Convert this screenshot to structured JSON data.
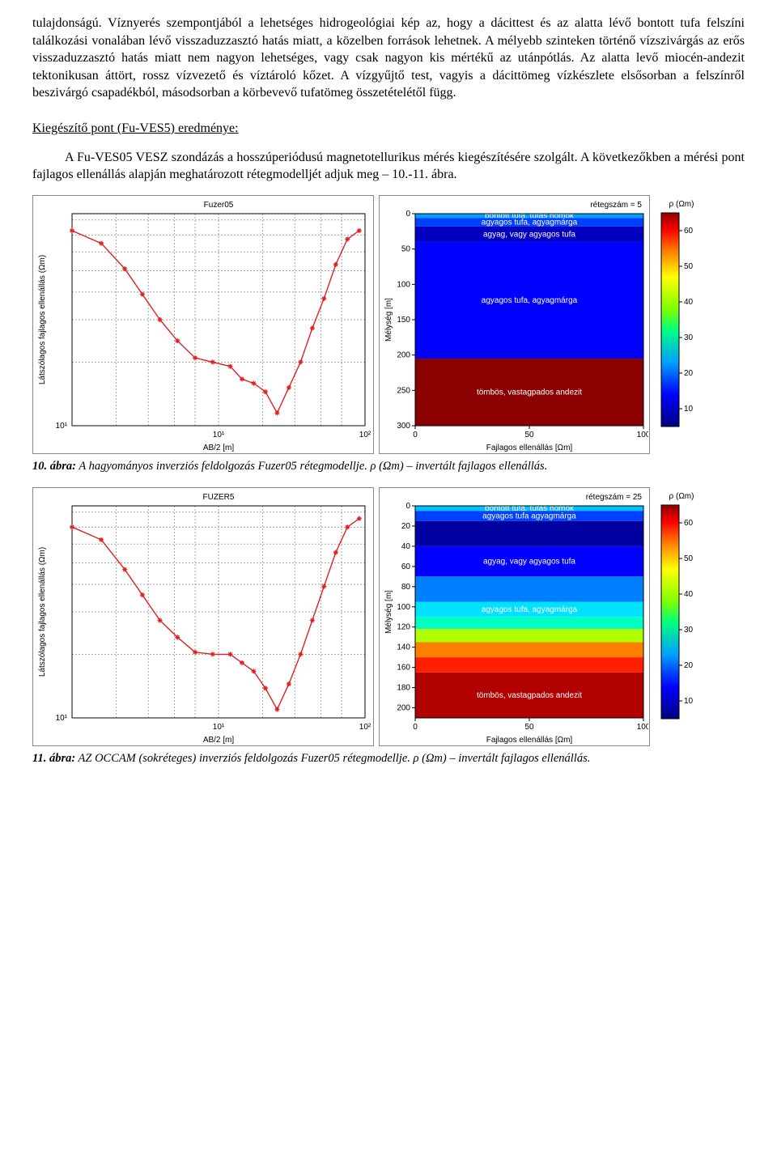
{
  "para1": "tulajdonságú. Víznyerés szempontjából a lehetséges hidrogeológiai kép az, hogy a dácittest és az alatta lévő bontott tufa felszíni találkozási vonalában lévő visszaduzzasztó hatás miatt, a közelben források lehetnek. A mélyebb szinteken történő vízszivárgás az erős visszaduzzasztó hatás miatt nem nagyon lehetséges, vagy csak nagyon kis mértékű az utánpótlás. Az alatta levő miocén-andezit tektonikusan áttört, rossz vízvezető és víztároló kőzet. A vízgyűjtő test, vagyis a dácittömeg vízkészlete elsősorban a felszínről beszivárgó csapadékból, másodsorban a körbevevő tufatömeg összetételétől függ.",
  "sectionTitle": "Kiegészítő pont (Fu-VES5) eredménye:",
  "para2": "A Fu-VES05 VESZ szondázás a hosszúperiódusú magnetotellurikus mérés kiegészítésére szolgált. A következőkben a mérési pont fajlagos ellenállás alapján meghatározott rétegmodelljét adjuk meg – 10.-11. ábra.",
  "fig10": {
    "caption_bold": "10. ábra:",
    "caption_rest": " A hagyományos inverziós feldolgozás Fuzer05 rétegmodellje. ρ (Ωm) – invertált fajlagos ellenállás.",
    "left": {
      "title": "Fuzer05",
      "xlabel": "AB/2 [m]",
      "ylabel": "Látszólagos fajlagos ellenállás (Ωm)",
      "xticks": [
        {
          "p": 0.0,
          "l": ""
        },
        {
          "p": 0.5,
          "l": "10¹"
        },
        {
          "p": 1.0,
          "l": "10²"
        }
      ],
      "yticks": [
        {
          "p": 0.0,
          "l": "10¹"
        },
        {
          "p": 1.0,
          "l": ""
        }
      ],
      "grid_x": [
        0.0,
        0.15,
        0.26,
        0.35,
        0.42,
        0.5,
        0.65,
        0.76,
        0.85,
        0.92,
        1.0
      ],
      "grid_y": [
        0.0,
        0.3,
        0.5,
        0.63,
        0.73,
        0.82,
        0.9,
        0.97
      ],
      "curve": [
        {
          "x": 0.0,
          "y": 0.92
        },
        {
          "x": 0.1,
          "y": 0.86
        },
        {
          "x": 0.18,
          "y": 0.74
        },
        {
          "x": 0.24,
          "y": 0.62
        },
        {
          "x": 0.3,
          "y": 0.5
        },
        {
          "x": 0.36,
          "y": 0.4
        },
        {
          "x": 0.42,
          "y": 0.32
        },
        {
          "x": 0.48,
          "y": 0.3
        },
        {
          "x": 0.54,
          "y": 0.28
        },
        {
          "x": 0.58,
          "y": 0.22
        },
        {
          "x": 0.62,
          "y": 0.2
        },
        {
          "x": 0.66,
          "y": 0.16
        },
        {
          "x": 0.7,
          "y": 0.06
        },
        {
          "x": 0.74,
          "y": 0.18
        },
        {
          "x": 0.78,
          "y": 0.3
        },
        {
          "x": 0.82,
          "y": 0.46
        },
        {
          "x": 0.86,
          "y": 0.6
        },
        {
          "x": 0.9,
          "y": 0.76
        },
        {
          "x": 0.94,
          "y": 0.88
        },
        {
          "x": 0.98,
          "y": 0.92
        }
      ],
      "curve_color": "#e02020",
      "bg": "#ffffff"
    },
    "mid": {
      "title": "rétegszám = 5",
      "xlabel": "Fajlagos ellenállás [Ωm]",
      "ylabel": "Mélység [m]",
      "xticks": [
        {
          "v": 0,
          "l": "0"
        },
        {
          "v": 50,
          "l": "50"
        },
        {
          "v": 100,
          "l": "100"
        }
      ],
      "yticks": [
        {
          "v": 0,
          "l": "0"
        },
        {
          "v": 50,
          "l": "50"
        },
        {
          "v": 100,
          "l": "100"
        },
        {
          "v": 150,
          "l": "150"
        },
        {
          "v": 200,
          "l": "200"
        },
        {
          "v": 250,
          "l": "250"
        },
        {
          "v": 300,
          "l": "300"
        }
      ],
      "ylim": [
        0,
        300
      ],
      "layers": [
        {
          "from": 0,
          "to": 6,
          "color": "#00a0ff",
          "label": "bontott tufa, tufás homok"
        },
        {
          "from": 6,
          "to": 18,
          "color": "#0040ff",
          "label": "agyagos tufa, agyagmárga"
        },
        {
          "from": 18,
          "to": 40,
          "color": "#0000c0",
          "label": "agyag, vagy agyagos tufa"
        },
        {
          "from": 40,
          "to": 205,
          "color": "#0000ff",
          "label": "agyagos tufa, agyagmárga"
        },
        {
          "from": 205,
          "to": 300,
          "color": "#8b0000",
          "label": "tömbös, vastagpados andezit"
        }
      ]
    },
    "cbar": {
      "title": "ρ (Ωm)",
      "ticks": [
        {
          "v": 10,
          "l": "10"
        },
        {
          "v": 20,
          "l": "20"
        },
        {
          "v": 30,
          "l": "30"
        },
        {
          "v": 40,
          "l": "40"
        },
        {
          "v": 50,
          "l": "50"
        },
        {
          "v": 60,
          "l": "60"
        }
      ],
      "range": [
        5,
        65
      ],
      "stops": [
        {
          "p": 0.0,
          "c": "#000080"
        },
        {
          "p": 0.15,
          "c": "#0000ff"
        },
        {
          "p": 0.3,
          "c": "#00a0ff"
        },
        {
          "p": 0.45,
          "c": "#00ff80"
        },
        {
          "p": 0.55,
          "c": "#80ff00"
        },
        {
          "p": 0.7,
          "c": "#ffff00"
        },
        {
          "p": 0.82,
          "c": "#ff8000"
        },
        {
          "p": 0.92,
          "c": "#ff0000"
        },
        {
          "p": 1.0,
          "c": "#8b0000"
        }
      ]
    }
  },
  "fig11": {
    "caption_bold": "11. ábra:",
    "caption_rest": " AZ OCCAM (sokréteges) inverziós feldolgozás Fuzer05 rétegmodellje. ρ (Ωm) – invertált fajlagos ellenállás.",
    "left": {
      "title": "FUZER5",
      "xlabel": "AB/2 [m]",
      "ylabel": "Látszólagos fajlagos ellenállás (Ωm)",
      "xticks": [
        {
          "p": 0.0,
          "l": ""
        },
        {
          "p": 0.5,
          "l": "10¹"
        },
        {
          "p": 1.0,
          "l": "10²"
        }
      ],
      "yticks": [
        {
          "p": 0.0,
          "l": "10¹"
        },
        {
          "p": 1.0,
          "l": ""
        }
      ],
      "grid_x": [
        0.0,
        0.15,
        0.26,
        0.35,
        0.42,
        0.5,
        0.65,
        0.76,
        0.85,
        0.92,
        1.0
      ],
      "grid_y": [
        0.0,
        0.3,
        0.5,
        0.63,
        0.73,
        0.82,
        0.9,
        0.97
      ],
      "curve": [
        {
          "x": 0.0,
          "y": 0.9
        },
        {
          "x": 0.1,
          "y": 0.84
        },
        {
          "x": 0.18,
          "y": 0.7
        },
        {
          "x": 0.24,
          "y": 0.58
        },
        {
          "x": 0.3,
          "y": 0.46
        },
        {
          "x": 0.36,
          "y": 0.38
        },
        {
          "x": 0.42,
          "y": 0.31
        },
        {
          "x": 0.48,
          "y": 0.3
        },
        {
          "x": 0.54,
          "y": 0.3
        },
        {
          "x": 0.58,
          "y": 0.26
        },
        {
          "x": 0.62,
          "y": 0.22
        },
        {
          "x": 0.66,
          "y": 0.14
        },
        {
          "x": 0.7,
          "y": 0.04
        },
        {
          "x": 0.74,
          "y": 0.16
        },
        {
          "x": 0.78,
          "y": 0.3
        },
        {
          "x": 0.82,
          "y": 0.46
        },
        {
          "x": 0.86,
          "y": 0.62
        },
        {
          "x": 0.9,
          "y": 0.78
        },
        {
          "x": 0.94,
          "y": 0.9
        },
        {
          "x": 0.98,
          "y": 0.94
        }
      ],
      "curve_color": "#e02020",
      "bg": "#ffffff"
    },
    "mid": {
      "title": "rétegszám = 25",
      "xlabel": "Fajlagos ellenállás [Ωm]",
      "ylabel": "Mélység [m]",
      "xticks": [
        {
          "v": 0,
          "l": "0"
        },
        {
          "v": 50,
          "l": "50"
        },
        {
          "v": 100,
          "l": "100"
        }
      ],
      "yticks": [
        {
          "v": 0,
          "l": "0"
        },
        {
          "v": 20,
          "l": "20"
        },
        {
          "v": 40,
          "l": "40"
        },
        {
          "v": 60,
          "l": "60"
        },
        {
          "v": 80,
          "l": "80"
        },
        {
          "v": 100,
          "l": "100"
        },
        {
          "v": 120,
          "l": "120"
        },
        {
          "v": 140,
          "l": "140"
        },
        {
          "v": 160,
          "l": "160"
        },
        {
          "v": 180,
          "l": "180"
        },
        {
          "v": 200,
          "l": "200"
        }
      ],
      "ylim": [
        0,
        210
      ],
      "layers": [
        {
          "from": 0,
          "to": 5,
          "color": "#00c0ff",
          "label": "bontott tufa, tufás homok"
        },
        {
          "from": 5,
          "to": 15,
          "color": "#0040ff",
          "label": "agyagos tufa agyagmárga"
        },
        {
          "from": 15,
          "to": 40,
          "color": "#0000a0",
          "label": ""
        },
        {
          "from": 40,
          "to": 70,
          "color": "#0000ff",
          "label": "agyag, vagy agyagos tufa"
        },
        {
          "from": 70,
          "to": 95,
          "color": "#0080ff",
          "label": ""
        },
        {
          "from": 95,
          "to": 110,
          "color": "#00e0ff",
          "label": "agyagos tufa, agyagmárga"
        },
        {
          "from": 110,
          "to": 122,
          "color": "#00ffc0",
          "label": ""
        },
        {
          "from": 122,
          "to": 135,
          "color": "#b0ff00",
          "label": ""
        },
        {
          "from": 135,
          "to": 150,
          "color": "#ff8000",
          "label": ""
        },
        {
          "from": 150,
          "to": 165,
          "color": "#ff2000",
          "label": ""
        },
        {
          "from": 165,
          "to": 210,
          "color": "#b00000",
          "label": "tömbös, vastagpados andezit"
        }
      ]
    },
    "cbar": {
      "title": "ρ (Ωm)",
      "ticks": [
        {
          "v": 10,
          "l": "10"
        },
        {
          "v": 20,
          "l": "20"
        },
        {
          "v": 30,
          "l": "30"
        },
        {
          "v": 40,
          "l": "40"
        },
        {
          "v": 50,
          "l": "50"
        },
        {
          "v": 60,
          "l": "60"
        }
      ],
      "range": [
        5,
        65
      ],
      "stops": [
        {
          "p": 0.0,
          "c": "#000080"
        },
        {
          "p": 0.15,
          "c": "#0000ff"
        },
        {
          "p": 0.3,
          "c": "#00a0ff"
        },
        {
          "p": 0.45,
          "c": "#00ff80"
        },
        {
          "p": 0.55,
          "c": "#80ff00"
        },
        {
          "p": 0.7,
          "c": "#ffff00"
        },
        {
          "p": 0.82,
          "c": "#ff8000"
        },
        {
          "p": 0.92,
          "c": "#ff0000"
        },
        {
          "p": 1.0,
          "c": "#8b0000"
        }
      ]
    }
  }
}
